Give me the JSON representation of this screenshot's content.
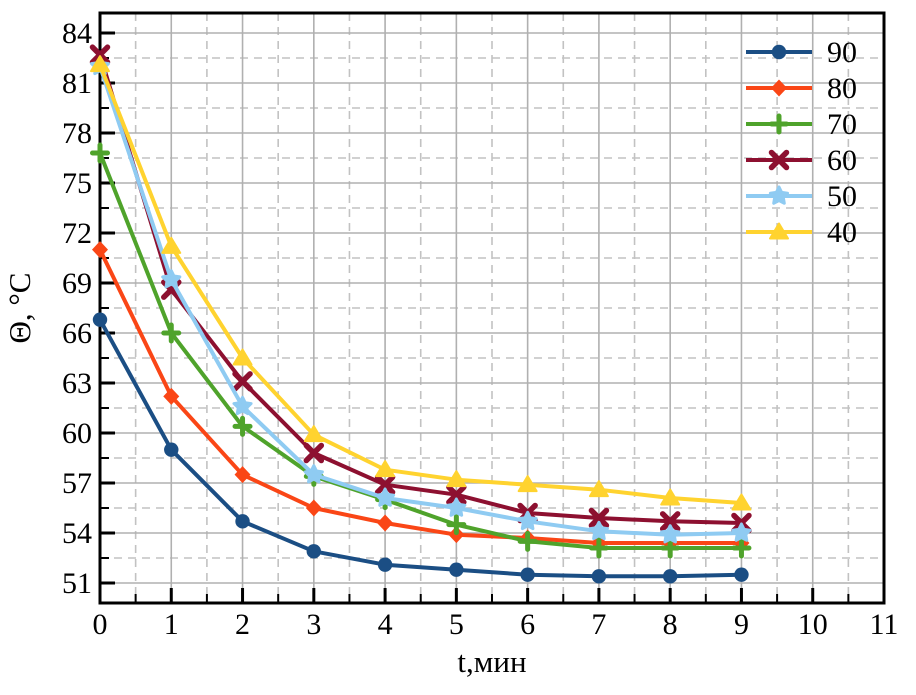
{
  "chart_data": {
    "type": "line",
    "title": "",
    "xlabel": "t,мин",
    "ylabel": "Θ, °C",
    "x": [
      0,
      1,
      2,
      3,
      4,
      5,
      6,
      7,
      8,
      9
    ],
    "series": [
      {
        "name": "90",
        "color": "#1B4E84",
        "marker": "circle",
        "values": [
          66.8,
          59.0,
          54.7,
          52.9,
          52.1,
          51.8,
          51.5,
          51.4,
          51.4,
          51.5
        ]
      },
      {
        "name": "80",
        "color": "#FA4616",
        "marker": "diamond",
        "values": [
          71.0,
          62.2,
          57.5,
          55.5,
          54.6,
          53.9,
          53.7,
          53.4,
          53.4,
          53.4
        ]
      },
      {
        "name": "70",
        "color": "#4FA32B",
        "marker": "plus",
        "values": [
          76.8,
          66.0,
          60.4,
          57.4,
          56.0,
          54.5,
          53.5,
          53.1,
          53.1,
          53.1
        ]
      },
      {
        "name": "60",
        "color": "#8D1030",
        "marker": "x",
        "values": [
          82.7,
          68.6,
          63.1,
          58.8,
          56.9,
          56.3,
          55.2,
          54.9,
          54.7,
          54.6
        ]
      },
      {
        "name": "50",
        "color": "#8FCBF2",
        "marker": "star",
        "values": [
          82.0,
          69.2,
          61.6,
          57.5,
          56.1,
          55.5,
          54.7,
          54.1,
          53.9,
          54.0
        ]
      },
      {
        "name": "40",
        "color": "#FFD32F",
        "marker": "triangle",
        "values": [
          82.1,
          71.2,
          64.5,
          59.9,
          57.8,
          57.2,
          56.9,
          56.6,
          56.1,
          55.8
        ]
      }
    ],
    "xlim": [
      0,
      11
    ],
    "ylim": [
      49.8,
      85.2
    ],
    "x_ticks": [
      0,
      1,
      2,
      3,
      4,
      5,
      6,
      7,
      8,
      9,
      10,
      11
    ],
    "y_ticks": [
      51,
      54,
      57,
      60,
      63,
      66,
      69,
      72,
      75,
      78,
      81,
      84
    ],
    "x_minor_step": 0.5,
    "y_minor_step": 1.5,
    "grid": true,
    "grid_major_color": "#B0B0B0",
    "grid_minor_color": "#C2C2C2",
    "axis_color": "#000000",
    "legend_position": "top-right",
    "legend_labels": [
      "90",
      "80",
      "70",
      "60",
      "50",
      "40"
    ]
  }
}
